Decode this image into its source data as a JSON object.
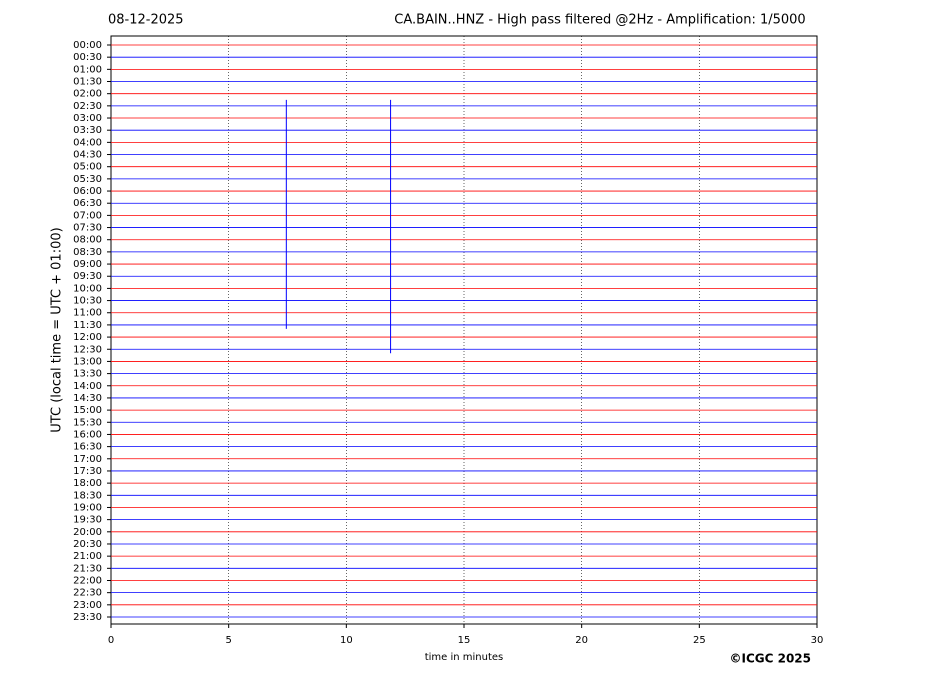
{
  "chart_data": {
    "type": "seismogram",
    "title": "CA.BAIN..HNZ - High pass filtered @2Hz - Amplification: 1/5000",
    "date": "08-12-2025",
    "x_label": "time in minutes",
    "y_label": "UTC (local time = UTC + 01:00)",
    "credit": "©ICGC 2025",
    "categories": [
      "00:00",
      "00:30",
      "01:00",
      "01:30",
      "02:00",
      "02:30",
      "03:00",
      "03:30",
      "04:00",
      "04:30",
      "05:00",
      "05:30",
      "06:00",
      "06:30",
      "07:00",
      "07:30",
      "08:00",
      "08:30",
      "09:00",
      "09:30",
      "10:00",
      "10:30",
      "11:00",
      "11:30",
      "12:00",
      "12:30",
      "13:00",
      "13:30",
      "14:00",
      "14:30",
      "15:00",
      "15:30",
      "16:00",
      "16:30",
      "17:00",
      "17:30",
      "18:00",
      "18:30",
      "19:00",
      "19:30",
      "20:00",
      "20:30",
      "21:00",
      "21:30",
      "22:00",
      "22:30",
      "23:00",
      "23:30"
    ],
    "colors": [
      "#ff0000",
      "#0000ff"
    ],
    "xlim": [
      0,
      30
    ],
    "xticks": [
      0,
      5,
      10,
      15,
      20,
      25,
      30
    ],
    "grid": true,
    "events": [
      {
        "x": 7.45,
        "start": "02:30",
        "end": "11:30",
        "color": "#0000ff"
      },
      {
        "x": 11.88,
        "start": "02:30",
        "end": "12:30",
        "color": "#0000ff"
      }
    ]
  }
}
